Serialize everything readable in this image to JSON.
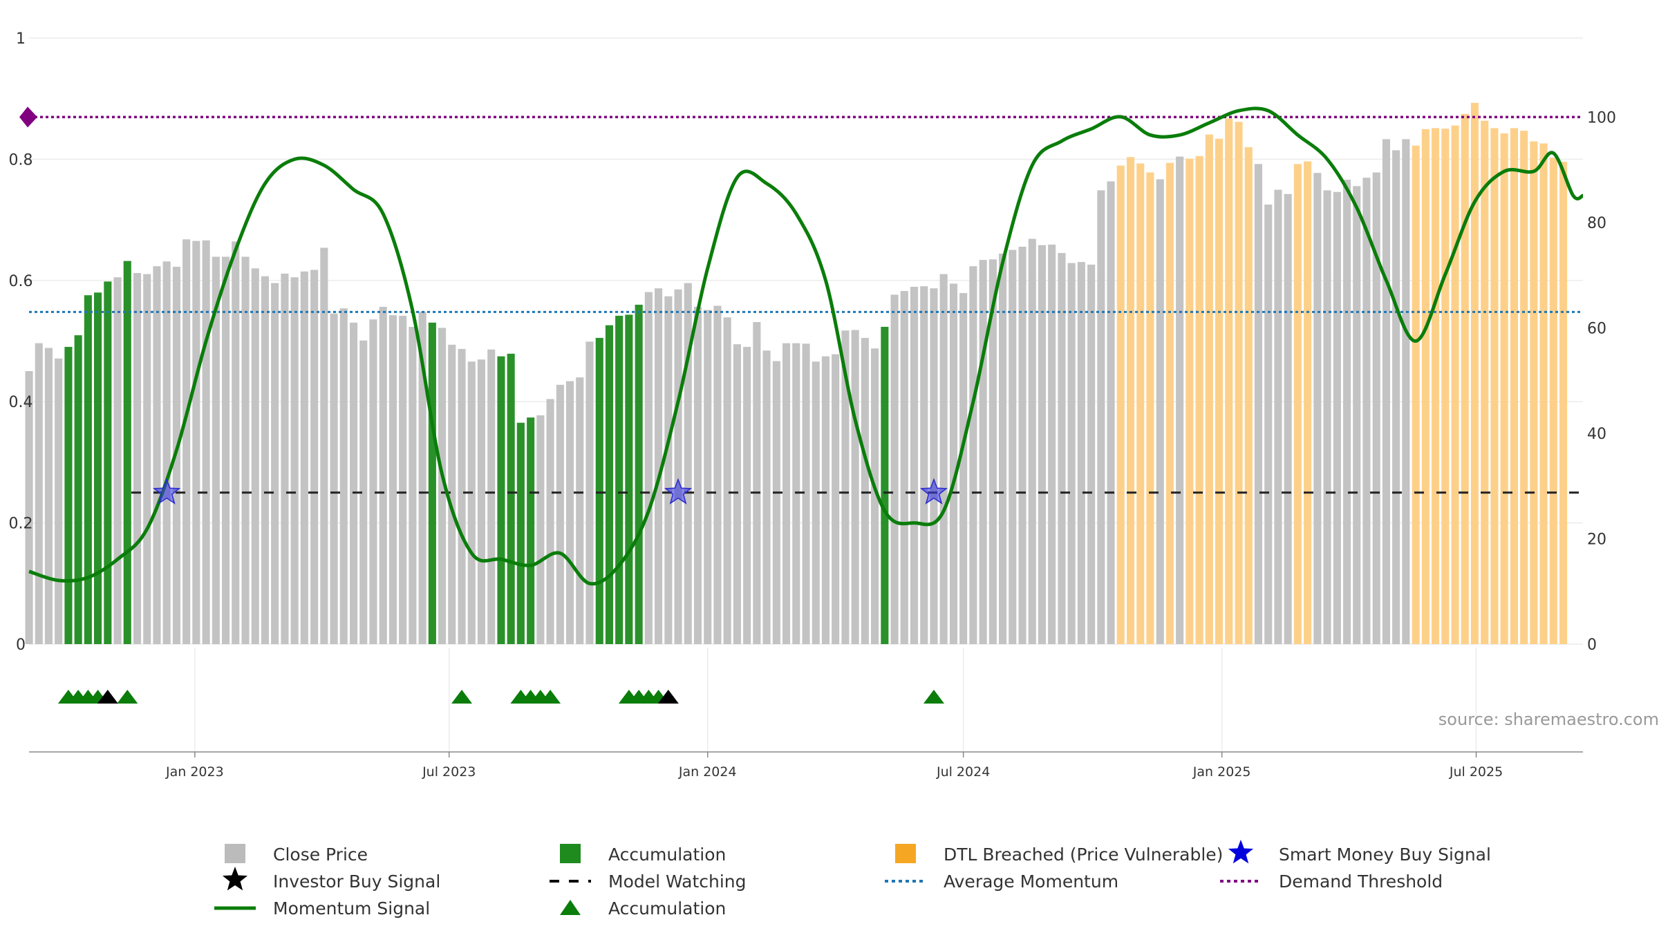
{
  "chart_data": {
    "type": "bar",
    "source_text": "source: sharemaestro.com",
    "left_axis": {
      "ylim": [
        0,
        1
      ],
      "ticks": [
        "0",
        "0.2",
        "0.4",
        "0.6",
        "0.8",
        "1"
      ],
      "tick_values": [
        0,
        0.2,
        0.4,
        0.6,
        0.8,
        1
      ]
    },
    "right_axis": {
      "ylim": [
        0,
        115
      ],
      "ticks": [
        "0",
        "20",
        "40",
        "60",
        "80",
        "100"
      ],
      "tick_values": [
        0,
        20,
        40,
        60,
        80,
        100
      ]
    },
    "x_axis": {
      "start": "2022-09-05",
      "end": "2025-09-15",
      "ticks": [
        {
          "date": "2023-01-01",
          "label": "Jan 2023"
        },
        {
          "date": "2023-07-01",
          "label": "Jul 2023"
        },
        {
          "date": "2024-01-01",
          "label": "Jan 2024"
        },
        {
          "date": "2024-07-01",
          "label": "Jul 2024"
        },
        {
          "date": "2025-01-01",
          "label": "Jan 2025"
        },
        {
          "date": "2025-07-01",
          "label": "Jul 2025"
        }
      ]
    },
    "first_week": "2022-09-05",
    "week_step_days": 7,
    "close_price": [
      51.8,
      57.1,
      56.2,
      54.2,
      56.4,
      58.6,
      66.2,
      66.7,
      68.8,
      69.6,
      72.7,
      70.4,
      70.2,
      71.7,
      72.6,
      71.6,
      76.8,
      76.5,
      76.6,
      73.5,
      73.5,
      76.4,
      73.5,
      71.3,
      69.8,
      68.5,
      70.3,
      69.6,
      70.7,
      71.0,
      75.2,
      62.7,
      63.7,
      61.0,
      57.6,
      61.6,
      64.0,
      62.4,
      62.3,
      60.2,
      63.1,
      61.0,
      60.0,
      56.8,
      56.0,
      53.6,
      54.0,
      55.9,
      54.6,
      55.1,
      42.0,
      43.0,
      43.4,
      46.5,
      49.2,
      49.9,
      50.6,
      57.4,
      58.1,
      60.5,
      62.3,
      62.5,
      64.4,
      66.8,
      67.5,
      66.0,
      67.3,
      68.5,
      64.0,
      63.4,
      64.2,
      62.0,
      56.9,
      56.4,
      61.1,
      55.7,
      53.7,
      57.1,
      57.1,
      57.0,
      53.6,
      54.6,
      55.0,
      59.5,
      59.6,
      58.1,
      56.1,
      60.2,
      66.3,
      67.0,
      67.8,
      67.9,
      67.5,
      70.2,
      68.4,
      66.6,
      71.7,
      72.9,
      73.0,
      74.1,
      74.8,
      75.4,
      76.9,
      75.7,
      75.8,
      74.2,
      72.3,
      72.5,
      72.0,
      86.1,
      87.8,
      90.8,
      92.4,
      91.2,
      89.5,
      88.2,
      91.3,
      92.5,
      92.1,
      92.6,
      96.7,
      95.9,
      99.7,
      99.1,
      94.3,
      91.1,
      83.4,
      86.2,
      85.4,
      91.1,
      91.6,
      89.4,
      86.1,
      85.8,
      88.1,
      86.9,
      88.5,
      89.5,
      95.8,
      93.7,
      95.8,
      94.6,
      97.7,
      97.9,
      97.8,
      98.4,
      100.6,
      102.7,
      99.3,
      97.9,
      96.9,
      97.9,
      97.4,
      95.4,
      95.0,
      92.3,
      91.5
    ],
    "bar_class": [
      "c",
      "c",
      "c",
      "c",
      "a",
      "a",
      "a",
      "a",
      "a",
      "c",
      "a",
      "c",
      "c",
      "c",
      "c",
      "c",
      "c",
      "c",
      "c",
      "c",
      "c",
      "c",
      "c",
      "c",
      "c",
      "c",
      "c",
      "c",
      "c",
      "c",
      "c",
      "c",
      "c",
      "c",
      "c",
      "c",
      "c",
      "c",
      "c",
      "c",
      "c",
      "a",
      "c",
      "c",
      "c",
      "c",
      "c",
      "c",
      "a",
      "a",
      "a",
      "a",
      "c",
      "c",
      "c",
      "c",
      "c",
      "c",
      "a",
      "a",
      "a",
      "a",
      "a",
      "c",
      "c",
      "c",
      "c",
      "c",
      "c",
      "c",
      "c",
      "c",
      "c",
      "c",
      "c",
      "c",
      "c",
      "c",
      "c",
      "c",
      "c",
      "c",
      "c",
      "c",
      "c",
      "c",
      "c",
      "a",
      "c",
      "c",
      "c",
      "c",
      "c",
      "c",
      "c",
      "c",
      "c",
      "c",
      "c",
      "c",
      "c",
      "c",
      "c",
      "c",
      "c",
      "c",
      "c",
      "c",
      "c",
      "c",
      "c",
      "d",
      "d",
      "d",
      "d",
      "c",
      "d",
      "c",
      "d",
      "d",
      "d",
      "d",
      "d",
      "d",
      "d",
      "c",
      "c",
      "c",
      "c",
      "d",
      "d",
      "c",
      "c",
      "c",
      "c",
      "c",
      "c",
      "c",
      "c",
      "c",
      "c",
      "d",
      "d",
      "d",
      "d",
      "d",
      "d",
      "d",
      "d",
      "d",
      "d",
      "d",
      "d",
      "d",
      "d",
      "d",
      "d",
      "d",
      "d",
      "d",
      "d",
      "d"
    ],
    "momentum": [
      [
        "2022-09-05",
        0.12
      ],
      [
        "2022-09-26",
        0.105
      ],
      [
        "2022-10-17",
        0.11
      ],
      [
        "2022-11-07",
        0.14
      ],
      [
        "2022-11-28",
        0.19
      ],
      [
        "2022-12-19",
        0.32
      ],
      [
        "2023-01-09",
        0.5
      ],
      [
        "2023-01-30",
        0.65
      ],
      [
        "2023-02-20",
        0.76
      ],
      [
        "2023-03-13",
        0.8
      ],
      [
        "2023-04-03",
        0.79
      ],
      [
        "2023-04-24",
        0.75
      ],
      [
        "2023-05-15",
        0.71
      ],
      [
        "2023-06-05",
        0.55
      ],
      [
        "2023-06-26",
        0.28
      ],
      [
        "2023-07-17",
        0.15
      ],
      [
        "2023-08-07",
        0.14
      ],
      [
        "2023-08-28",
        0.13
      ],
      [
        "2023-09-18",
        0.15
      ],
      [
        "2023-10-09",
        0.1
      ],
      [
        "2023-10-30",
        0.13
      ],
      [
        "2023-11-20",
        0.22
      ],
      [
        "2023-12-11",
        0.4
      ],
      [
        "2024-01-01",
        0.62
      ],
      [
        "2024-01-22",
        0.77
      ],
      [
        "2024-02-12",
        0.76
      ],
      [
        "2024-03-04",
        0.71
      ],
      [
        "2024-03-25",
        0.6
      ],
      [
        "2024-04-15",
        0.37
      ],
      [
        "2024-05-06",
        0.22
      ],
      [
        "2024-05-27",
        0.2
      ],
      [
        "2024-06-17",
        0.22
      ],
      [
        "2024-07-08",
        0.4
      ],
      [
        "2024-07-29",
        0.63
      ],
      [
        "2024-08-19",
        0.79
      ],
      [
        "2024-09-09",
        0.83
      ],
      [
        "2024-09-30",
        0.85
      ],
      [
        "2024-10-21",
        0.87
      ],
      [
        "2024-11-11",
        0.84
      ],
      [
        "2024-12-02",
        0.84
      ],
      [
        "2024-12-23",
        0.86
      ],
      [
        "2025-01-13",
        0.88
      ],
      [
        "2025-02-03",
        0.88
      ],
      [
        "2025-02-24",
        0.84
      ],
      [
        "2025-03-17",
        0.8
      ],
      [
        "2025-04-07",
        0.72
      ],
      [
        "2025-04-28",
        0.6
      ],
      [
        "2025-05-19",
        0.5
      ],
      [
        "2025-06-09",
        0.61
      ],
      [
        "2025-06-30",
        0.73
      ],
      [
        "2025-07-21",
        0.78
      ],
      [
        "2025-08-11",
        0.78
      ],
      [
        "2025-08-25",
        0.81
      ],
      [
        "2025-09-08",
        0.74
      ],
      [
        "2025-09-15",
        0.74
      ]
    ],
    "average_momentum": 0.548,
    "model_watching_level": 0.25,
    "demand_threshold_right": 100,
    "smart_money_signals": [
      {
        "date": "2022-12-12",
        "y": 0.25
      },
      {
        "date": "2023-12-11",
        "y": 0.25
      },
      {
        "date": "2024-06-10",
        "y": 0.25
      }
    ],
    "accumulation_markers": [
      "2022-10-03",
      "2022-10-10",
      "2022-10-17",
      "2022-10-24",
      "2022-11-14",
      "2023-07-10",
      "2023-08-21",
      "2023-08-28",
      "2023-09-04",
      "2023-09-11",
      "2023-11-06",
      "2023-11-13",
      "2023-11-20",
      "2023-11-27",
      "2024-06-10"
    ],
    "investor_buy_markers": [
      "2022-10-31",
      "2023-12-04"
    ],
    "legend": [
      {
        "label": "Close Price",
        "symbol": "square",
        "color": "#bbbbbb"
      },
      {
        "label": "Accumulation",
        "symbol": "square",
        "color": "#1f8b1f"
      },
      {
        "label": "DTL Breached (Price Vulnerable)",
        "symbol": "square",
        "color": "#f5a623"
      },
      {
        "label": "Smart Money Buy Signal",
        "symbol": "star",
        "color": "#0000dd"
      },
      {
        "label": "Investor Buy Signal",
        "symbol": "star",
        "color": "#000000"
      },
      {
        "label": "Model Watching",
        "symbol": "dash",
        "color": "#000000"
      },
      {
        "label": "Average Momentum",
        "symbol": "dot",
        "color": "#1f77b4"
      },
      {
        "label": "Demand Threshold",
        "symbol": "dot",
        "color": "#800080"
      },
      {
        "label": "Momentum Signal",
        "symbol": "line",
        "color": "#0a7d0a"
      },
      {
        "label": "Accumulation",
        "symbol": "triangle",
        "color": "#0a7d0a"
      }
    ],
    "colors": {
      "close": "#c3c3c3",
      "accumulation": "#1f8b1f",
      "dtl": "#fdd08a",
      "momentum": "#0a7d0a",
      "avg_momentum": "#1f77b4",
      "demand": "#800080",
      "smart_money": "#0000dd"
    }
  }
}
